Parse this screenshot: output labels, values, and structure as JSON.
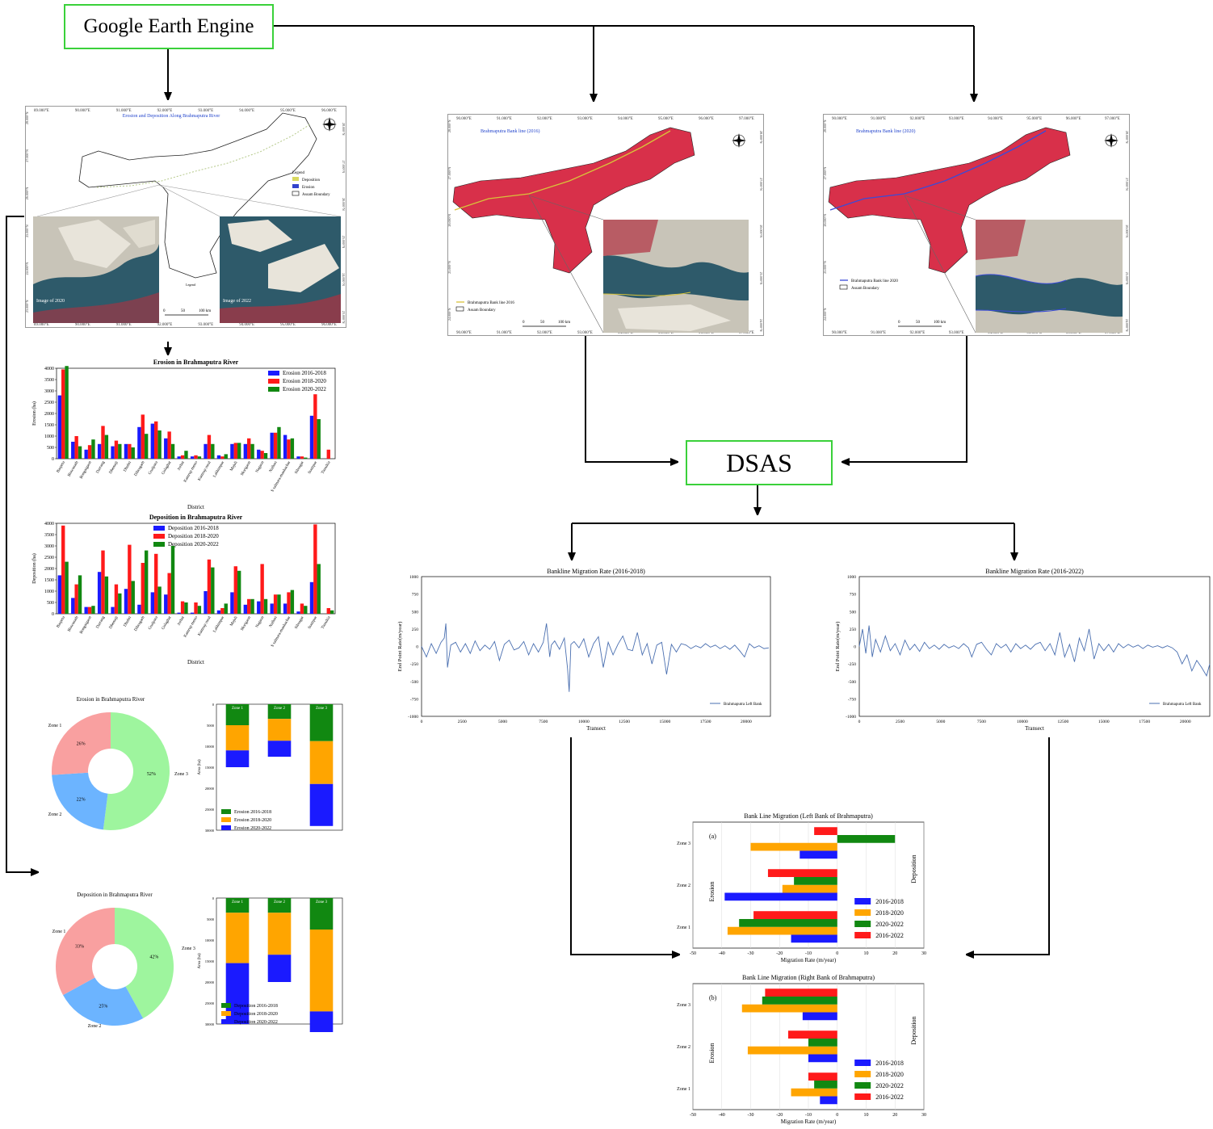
{
  "flow": {
    "source_label": "Google Earth Engine",
    "method_label": "DSAS"
  },
  "maps": {
    "erosion_map": {
      "title": "Erosion and Deposition Along Brahmaputra River",
      "legend_title": "Legend",
      "legend_items": [
        "Deposition",
        "Erosion",
        "Assam Boundary"
      ],
      "inset_left_caption": "Image of 2020",
      "inset_right_caption": "Image of 2022",
      "scale_label": "Legend",
      "scale_ticks": [
        "0",
        "50",
        "100 km"
      ],
      "lon_ticks": [
        "89.000°E",
        "90.000°E",
        "91.000°E",
        "92.000°E",
        "93.000°E",
        "94.000°E",
        "95.000°E",
        "96.000°E"
      ],
      "lat_ticks": [
        "28.000°N",
        "27.000°N",
        "26.000°N",
        "25.000°N",
        "24.000°N",
        "23.000°N"
      ]
    },
    "bank2016": {
      "title": "Brahmaputra Bank line (2016)",
      "legend_items": [
        "Brahmaputra Bank line 2016",
        "Assam Boundary"
      ],
      "scale_ticks": [
        "0",
        "50",
        "100 km"
      ],
      "lon_ticks": [
        "90.000°E",
        "91.000°E",
        "92.000°E",
        "93.000°E",
        "94.000°E",
        "95.000°E",
        "96.000°E",
        "97.000°E"
      ],
      "lat_ticks": [
        "28.000°N",
        "27.000°N",
        "26.000°N",
        "25.000°N",
        "24.000°N"
      ],
      "colors": {
        "line": "#d8c33a"
      }
    },
    "bank2020": {
      "title": "Brahmaputra Bank line (2020)",
      "legend_items": [
        "Brahmaputra Bank line 2020",
        "Assam Boundary"
      ],
      "scale_ticks": [
        "0",
        "50",
        "100 km"
      ],
      "lon_ticks": [
        "90.000°E",
        "91.000°E",
        "92.000°E",
        "93.000°E",
        "94.000°E",
        "95.000°E",
        "96.000°E",
        "97.000°E"
      ],
      "lat_ticks": [
        "28.000°N",
        "27.000°N",
        "26.000°N",
        "25.000°N",
        "24.000°N"
      ],
      "colors": {
        "line": "#3a4bd8"
      }
    }
  },
  "chart_data": [
    {
      "id": "erosion_bar",
      "type": "bar",
      "title": "Erosion in Brahmaputra River",
      "xlabel": "District",
      "ylabel": "Erosion (ha)",
      "ylim": [
        0,
        4000
      ],
      "yticks": [
        0,
        500,
        1000,
        1500,
        2000,
        2500,
        3000,
        3500,
        4000
      ],
      "legend_position": "top-right",
      "categories": [
        "Barpeta",
        "Biswanath",
        "Bongaigaon",
        "Darrang",
        "Dhemaji",
        "Dhubri",
        "Dibrugarh",
        "Goalpara",
        "Golaghat",
        "Jorhat",
        "Kamrup metro",
        "Kamrup rural",
        "Lakhimpur",
        "Majuli",
        "Morigaon",
        "Nagaon",
        "Nalbari",
        "S salmara-mankachar",
        "Sibsagar",
        "Sonitpur",
        "Tinsukia"
      ],
      "series": [
        {
          "name": "Erosion 2016-2018",
          "color": "#1a1aff",
          "values": [
            2800,
            750,
            400,
            650,
            550,
            650,
            1400,
            1550,
            900,
            100,
            100,
            650,
            150,
            650,
            650,
            400,
            1150,
            1050,
            100,
            1900,
            0
          ]
        },
        {
          "name": "Erosion 2018-2020",
          "color": "#ff1a1a",
          "values": [
            3950,
            1000,
            600,
            1450,
            800,
            650,
            1950,
            1650,
            1200,
            150,
            150,
            1050,
            100,
            700,
            900,
            350,
            1150,
            850,
            100,
            2850,
            400
          ]
        },
        {
          "name": "Erosion 2020-2022",
          "color": "#118811",
          "values": [
            4100,
            550,
            850,
            1050,
            650,
            500,
            1100,
            1250,
            650,
            350,
            100,
            650,
            200,
            700,
            650,
            250,
            1400,
            900,
            50,
            1750,
            0
          ]
        }
      ]
    },
    {
      "id": "deposition_bar",
      "type": "bar",
      "title": "Deposition in Brahmaputra River",
      "xlabel": "District",
      "ylabel": "Deposition (ha)",
      "ylim": [
        0,
        4000
      ],
      "yticks": [
        0,
        500,
        1000,
        1500,
        2000,
        2500,
        3000,
        3500,
        4000
      ],
      "legend_position": "top-center",
      "categories": [
        "Barpeta",
        "Biswanath",
        "Bongaigaon",
        "Darrang",
        "Dhemaji",
        "Dhubri",
        "Dibrugarh",
        "Goalpara",
        "Golaghat",
        "Jorhat",
        "Kamrup metro",
        "Kamrup rural",
        "Lakhimpur",
        "Majuli",
        "Morigaon",
        "Nagaon",
        "Nalbari",
        "S salmara-mankachar",
        "Sibsagar",
        "Sonitpur",
        "Tinsukia"
      ],
      "series": [
        {
          "name": "Deposition 2016-2018",
          "color": "#1a1aff",
          "values": [
            1700,
            700,
            300,
            1850,
            300,
            1100,
            400,
            950,
            850,
            50,
            50,
            1000,
            150,
            950,
            400,
            550,
            450,
            450,
            100,
            1400,
            0
          ]
        },
        {
          "name": "Deposition 2018-2020",
          "color": "#ff1a1a",
          "values": [
            3900,
            1300,
            300,
            2800,
            1300,
            3050,
            2250,
            2650,
            1800,
            550,
            500,
            2400,
            250,
            2100,
            650,
            2200,
            850,
            950,
            450,
            3950,
            250
          ]
        },
        {
          "name": "Deposition 2020-2022",
          "color": "#118811",
          "values": [
            2300,
            1700,
            350,
            1650,
            900,
            1450,
            2800,
            1200,
            3000,
            500,
            350,
            2050,
            450,
            1900,
            650,
            650,
            850,
            1050,
            350,
            2200,
            150
          ]
        }
      ]
    },
    {
      "id": "erosion_pie",
      "type": "pie",
      "title": "Erosion in Brahmaputra River",
      "labels": [
        "Zone 1",
        "Zone 2",
        "Zone 3"
      ],
      "values": [
        26,
        22,
        52
      ],
      "value_labels": [
        "26%",
        "22%",
        "52%"
      ],
      "colors": [
        "#f9a0a0",
        "#6cb4ff",
        "#9ef59e"
      ]
    },
    {
      "id": "erosion_stack",
      "type": "bar",
      "ylabel": "Area (ha)",
      "ylim": [
        0,
        30000
      ],
      "yticks": [
        0,
        5000,
        10000,
        15000,
        20000,
        25000,
        30000
      ],
      "categories": [
        "Zone 1",
        "Zone 2",
        "Zone 3"
      ],
      "legend_position": "bottom-left",
      "series": [
        {
          "name": "Erosion 2016-2018",
          "color": "#118811",
          "values": [
            5000,
            3500,
            8800
          ]
        },
        {
          "name": "Erosion 2018-2020",
          "color": "#ffa500",
          "values": [
            6000,
            5200,
            10200
          ]
        },
        {
          "name": "Erosion 2020-2022",
          "color": "#1a1aff",
          "values": [
            4000,
            3800,
            10000
          ]
        }
      ]
    },
    {
      "id": "deposition_pie",
      "type": "pie",
      "title": "Deposition in Brahmaputra River",
      "labels": [
        "Zone 1",
        "Zone 2",
        "Zone 3"
      ],
      "values": [
        33,
        25,
        42
      ],
      "value_labels": [
        "33%",
        "25%",
        "42%"
      ],
      "colors": [
        "#f9a0a0",
        "#6cb4ff",
        "#9ef59e"
      ]
    },
    {
      "id": "deposition_stack",
      "type": "bar",
      "ylabel": "Area (ha)",
      "ylim": [
        0,
        30000
      ],
      "yticks": [
        0,
        5000,
        10000,
        15000,
        20000,
        25000,
        30000
      ],
      "categories": [
        "Zone 1",
        "Zone 2",
        "Zone 3"
      ],
      "legend_position": "bottom-left",
      "series": [
        {
          "name": "Deposition 2016-2018",
          "color": "#118811",
          "values": [
            3500,
            3500,
            7500
          ]
        },
        {
          "name": "Deposition 2018-2020",
          "color": "#ffa500",
          "values": [
            12000,
            10000,
            19500
          ]
        },
        {
          "name": "Deposition 2020-2022",
          "color": "#1a1aff",
          "values": [
            14500,
            6500,
            12000
          ]
        }
      ]
    },
    {
      "id": "bml_2016_2018",
      "type": "line",
      "title": "Bankline Migration Rate (2016-2018)",
      "xlabel": "Transect",
      "ylabel": "End Point Rate(m/year)",
      "xlim": [
        0,
        21500
      ],
      "ylim": [
        -1000,
        1000
      ],
      "xticks": [
        0,
        2500,
        5000,
        7500,
        10000,
        12500,
        15000,
        17500,
        20000
      ],
      "yticks": [
        -1000,
        -750,
        -500,
        -250,
        0,
        250,
        500,
        750,
        1000
      ],
      "legend_position": "bottom-right",
      "series": [
        {
          "name": "Brahmaputra Left Bank",
          "color": "#4a6fb0",
          "x": [
            0,
            300,
            600,
            900,
            1200,
            1400,
            1500,
            1600,
            1800,
            2100,
            2400,
            2700,
            3000,
            3300,
            3600,
            3900,
            4200,
            4500,
            4800,
            5100,
            5400,
            5700,
            6000,
            6300,
            6600,
            6900,
            7200,
            7500,
            7700,
            7900,
            8000,
            8200,
            8500,
            8800,
            9000,
            9100,
            9200,
            9400,
            9700,
            10000,
            10300,
            10600,
            10900,
            11200,
            11500,
            11800,
            12100,
            12400,
            12700,
            13000,
            13300,
            13600,
            13900,
            14200,
            14500,
            14800,
            15100,
            15400,
            15700,
            16000,
            16300,
            16600,
            16900,
            17200,
            17500,
            17800,
            18100,
            18400,
            18700,
            19000,
            19300,
            19600,
            19900,
            20200,
            20500,
            20800,
            21100,
            21400
          ],
          "y": [
            0,
            -150,
            40,
            -100,
            60,
            120,
            330,
            -300,
            20,
            60,
            -80,
            40,
            -100,
            80,
            -60,
            20,
            -40,
            70,
            -200,
            30,
            90,
            -50,
            -20,
            70,
            -120,
            40,
            -80,
            60,
            330,
            -150,
            20,
            80,
            -40,
            120,
            -320,
            -650,
            30,
            70,
            -20,
            110,
            -150,
            40,
            140,
            -300,
            60,
            -120,
            30,
            150,
            -40,
            -60,
            200,
            -120,
            40,
            -250,
            20,
            60,
            -400,
            30,
            -80,
            40,
            20,
            -30,
            10,
            -20,
            40,
            -10,
            20,
            -30,
            10,
            -40,
            20,
            -60,
            -150,
            40,
            -20,
            10,
            -30,
            -20
          ]
        }
      ]
    },
    {
      "id": "bml_2016_2022",
      "type": "line",
      "title": "Bankline Migration Rate (2016-2022)",
      "xlabel": "Transect",
      "ylabel": "End Point Rate(m/year)",
      "xlim": [
        0,
        21500
      ],
      "ylim": [
        -1000,
        1000
      ],
      "xticks": [
        0,
        2500,
        5000,
        7500,
        10000,
        12500,
        15000,
        17500,
        20000
      ],
      "yticks": [
        -1000,
        -750,
        -500,
        -250,
        0,
        250,
        500,
        750,
        1000
      ],
      "legend_position": "bottom-right",
      "series": [
        {
          "name": "Brahmaputra Left Bank",
          "color": "#4a6fb0",
          "x": [
            0,
            200,
            400,
            600,
            800,
            1000,
            1300,
            1600,
            1900,
            2200,
            2500,
            2800,
            3100,
            3400,
            3700,
            4000,
            4300,
            4600,
            4900,
            5200,
            5500,
            5800,
            6100,
            6400,
            6700,
            6900,
            7200,
            7500,
            7800,
            8100,
            8400,
            8700,
            9000,
            9300,
            9600,
            9900,
            10200,
            10500,
            10800,
            11100,
            11400,
            11700,
            12000,
            12300,
            12600,
            12900,
            13200,
            13500,
            13800,
            14100,
            14400,
            14700,
            15000,
            15300,
            15600,
            15900,
            16200,
            16500,
            16800,
            17100,
            17400,
            17700,
            18000,
            18300,
            18600,
            18900,
            19200,
            19500,
            19800,
            20100,
            20400,
            20700,
            21000,
            21300,
            21500
          ],
          "y": [
            0,
            250,
            -100,
            300,
            -150,
            100,
            -80,
            150,
            -60,
            40,
            -120,
            90,
            -50,
            30,
            -70,
            60,
            -30,
            20,
            -40,
            30,
            -20,
            10,
            -30,
            40,
            -20,
            -150,
            30,
            60,
            -40,
            -120,
            40,
            -20,
            30,
            -80,
            40,
            -30,
            20,
            -40,
            30,
            60,
            -60,
            40,
            -120,
            200,
            -150,
            30,
            -220,
            120,
            -60,
            250,
            -180,
            40,
            -60,
            30,
            -80,
            40,
            -20,
            30,
            -10,
            20,
            -30,
            20,
            -10,
            10,
            -20,
            10,
            -20,
            -80,
            -250,
            -120,
            -350,
            -200,
            -300,
            -420,
            -250
          ]
        }
      ]
    },
    {
      "id": "left_bank",
      "type": "bar",
      "orientation": "horizontal",
      "title": "Bank Line Migration (Left Bank of Brahmaputra)",
      "panel_label": "(a)",
      "xlabel": "Migration Rate (m/year)",
      "side_labels": [
        "Erosion",
        "Deposition"
      ],
      "xlim": [
        -50,
        30
      ],
      "xticks": [
        -50,
        -40,
        -30,
        -20,
        -10,
        0,
        10,
        20,
        30
      ],
      "categories": [
        "Zone 3",
        "Zone 2",
        "Zone 1"
      ],
      "legend_position": "lower-right",
      "series": [
        {
          "name": "2016-2018",
          "color": "#1a1aff",
          "values": [
            -13,
            -39,
            -16
          ]
        },
        {
          "name": "2018-2020",
          "color": "#ffa500",
          "values": [
            -30,
            -19,
            -38
          ]
        },
        {
          "name": "2020-2022",
          "color": "#118811",
          "values": [
            20,
            -15,
            -34
          ]
        },
        {
          "name": "2016-2022",
          "color": "#ff1a1a",
          "values": [
            -8,
            -24,
            -29
          ]
        }
      ]
    },
    {
      "id": "right_bank",
      "type": "bar",
      "orientation": "horizontal",
      "title": "Bank Line Migration (Right Bank of Brahmaputra)",
      "panel_label": "(b)",
      "xlabel": "Migration Rate (m/year)",
      "side_labels": [
        "Erosion",
        "Deposition"
      ],
      "xlim": [
        -50,
        30
      ],
      "xticks": [
        -50,
        -40,
        -30,
        -20,
        -10,
        0,
        10,
        20,
        30
      ],
      "categories": [
        "Zone 3",
        "Zone 2",
        "Zone 1"
      ],
      "legend_position": "lower-right",
      "series": [
        {
          "name": "2016-2018",
          "color": "#1a1aff",
          "values": [
            -12,
            -10,
            -6
          ]
        },
        {
          "name": "2018-2020",
          "color": "#ffa500",
          "values": [
            -33,
            -31,
            -16
          ]
        },
        {
          "name": "2020-2022",
          "color": "#118811",
          "values": [
            -26,
            -10,
            -8
          ]
        },
        {
          "name": "2016-2022",
          "color": "#ff1a1a",
          "values": [
            -25,
            -17,
            -10
          ]
        }
      ]
    }
  ]
}
